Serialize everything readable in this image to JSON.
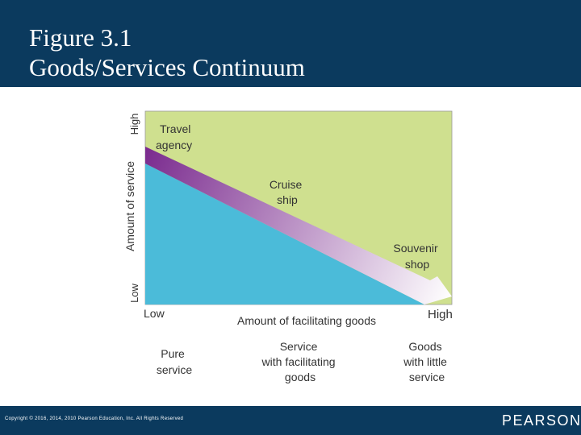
{
  "slide": {
    "title_line1": "Figure 3.1",
    "title_line2": "Goods/Services Continuum"
  },
  "diagram": {
    "y_axis_label": "Amount of service",
    "y_axis_high": "High",
    "y_axis_low": "Low",
    "x_axis_label": "Amount of facilitating goods",
    "x_axis_low": "Low",
    "x_axis_high": "High",
    "examples": {
      "travel_agency": [
        "Travel",
        "agency"
      ],
      "cruise_ship": [
        "Cruise",
        "ship"
      ],
      "souvenir_shop": [
        "Souvenir",
        "shop"
      ]
    },
    "categories": {
      "pure_service": [
        "Pure",
        "service"
      ],
      "service_with_goods": [
        "Service",
        "with facilitating",
        "goods"
      ],
      "goods_with_service": [
        "Goods",
        "with little",
        "service"
      ]
    },
    "colors": {
      "service_area": "#cfe08f",
      "goods_area": "#4bbbd9",
      "arrow_start": "#7b2c8f",
      "arrow_end": "#ffffff"
    }
  },
  "footer": {
    "copyright": "Copyright © 2016, 2014, 2010 Pearson Education, Inc. All Rights Reserved",
    "logo": "PEARSON"
  }
}
